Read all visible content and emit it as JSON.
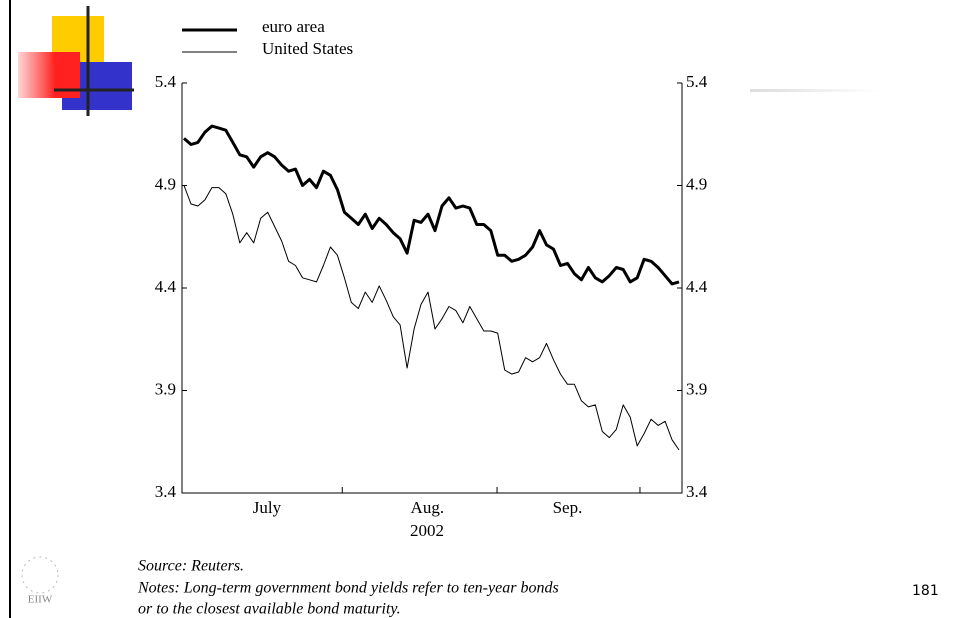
{
  "chart_data": {
    "type": "line",
    "x": [
      0,
      1,
      2,
      3,
      4,
      5,
      6,
      7,
      8,
      9,
      10,
      11,
      12,
      13,
      14,
      15,
      16,
      17,
      18,
      19,
      20,
      21,
      22,
      23,
      24,
      25,
      26,
      27,
      28,
      29,
      30,
      31,
      32,
      33,
      34,
      35,
      36,
      37,
      38,
      39,
      40,
      41,
      42,
      43,
      44,
      45,
      46,
      47,
      48,
      49,
      50,
      51,
      52,
      53,
      54,
      55,
      56,
      57,
      58,
      59,
      60,
      61,
      62,
      63,
      64,
      65,
      66,
      67,
      68,
      69,
      70,
      71
    ],
    "xlim": [
      0,
      71
    ],
    "xticks": [
      22.7,
      44.9,
      65.4
    ],
    "x_labels": [
      {
        "value": 11.9,
        "label": "July"
      },
      {
        "value": 34.9,
        "label": "Aug."
      },
      {
        "value": 55,
        "label": "Sep."
      }
    ],
    "xlabel": "2002",
    "ylim": [
      3.4,
      5.4
    ],
    "yticks": [
      3.4,
      3.9,
      4.4,
      4.9,
      5.4
    ],
    "series": [
      {
        "name": "euro area",
        "color": "#000000",
        "width": 3,
        "values": [
          5.13,
          5.1,
          5.11,
          5.16,
          5.19,
          5.18,
          5.17,
          5.11,
          5.05,
          5.04,
          4.99,
          5.04,
          5.06,
          5.04,
          5.0,
          4.97,
          4.98,
          4.9,
          4.93,
          4.89,
          4.97,
          4.95,
          4.88,
          4.77,
          4.74,
          4.71,
          4.76,
          4.69,
          4.74,
          4.71,
          4.67,
          4.64,
          4.57,
          4.73,
          4.72,
          4.76,
          4.68,
          4.8,
          4.84,
          4.79,
          4.8,
          4.79,
          4.71,
          4.71,
          4.68,
          4.56,
          4.56,
          4.53,
          4.54,
          4.56,
          4.6,
          4.68,
          4.61,
          4.59,
          4.51,
          4.52,
          4.47,
          4.44,
          4.5,
          4.45,
          4.43,
          4.46,
          4.5,
          4.49,
          4.43,
          4.45,
          4.54,
          4.53,
          4.5,
          4.46,
          4.42,
          4.43
        ]
      },
      {
        "name": "United States",
        "color": "#000000",
        "width": 1,
        "values": [
          4.9,
          4.81,
          4.8,
          4.83,
          4.89,
          4.89,
          4.86,
          4.76,
          4.62,
          4.67,
          4.62,
          4.74,
          4.77,
          4.7,
          4.63,
          4.53,
          4.51,
          4.45,
          4.44,
          4.43,
          4.51,
          4.6,
          4.56,
          4.45,
          4.33,
          4.3,
          4.38,
          4.33,
          4.41,
          4.34,
          4.26,
          4.22,
          4.01,
          4.2,
          4.32,
          4.38,
          4.2,
          4.25,
          4.31,
          4.29,
          4.23,
          4.31,
          4.25,
          4.19,
          4.19,
          4.18,
          4.0,
          3.98,
          3.99,
          4.06,
          4.04,
          4.06,
          4.13,
          4.05,
          3.98,
          3.93,
          3.93,
          3.85,
          3.82,
          3.83,
          3.7,
          3.67,
          3.71,
          3.83,
          3.77,
          3.63,
          3.69,
          3.76,
          3.73,
          3.75,
          3.66,
          3.61
        ]
      }
    ]
  },
  "source": "Source: Reuters.",
  "notes": [
    "Notes: Long-term government bond yields refer to ten-year bonds",
    "or to the closest available bond maturity."
  ],
  "logo_text": "EIIW",
  "page_number": "181"
}
